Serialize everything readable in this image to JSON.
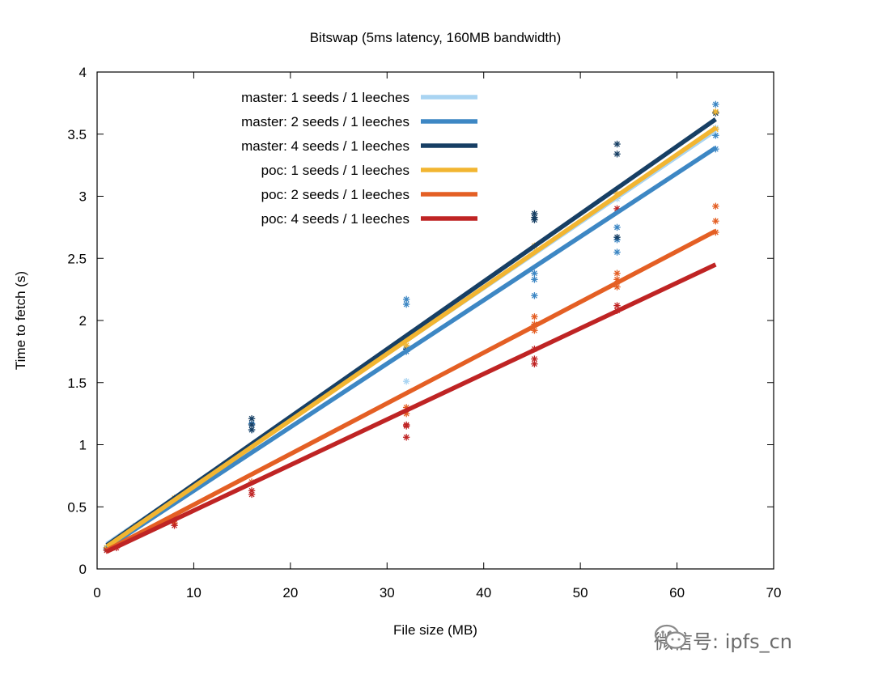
{
  "chart_data": {
    "type": "line",
    "title": "Bitswap (5ms latency, 160MB bandwidth)",
    "xlabel": "File size (MB)",
    "ylabel": "Time to fetch (s)",
    "xlim": [
      0,
      70
    ],
    "ylim": [
      0,
      4
    ],
    "xticks": [
      0,
      10,
      20,
      30,
      40,
      50,
      60,
      70
    ],
    "yticks": [
      0,
      0.5,
      1,
      1.5,
      2,
      2.5,
      3,
      3.5,
      4
    ],
    "grid": false,
    "legend_position": "top-left",
    "series": [
      {
        "name": "master: 1 seeds / 1 leeches",
        "color": "#a9d4f2",
        "line": [
          [
            1,
            0.2
          ],
          [
            64,
            3.53
          ]
        ],
        "points": [
          [
            1,
            0.17
          ],
          [
            2,
            0.22
          ],
          [
            4,
            0.35
          ],
          [
            8,
            0.56
          ],
          [
            16,
            0.97
          ],
          [
            32,
            1.78
          ],
          [
            32,
            1.51
          ],
          [
            45.25,
            2.55
          ],
          [
            53.8,
            2.98
          ],
          [
            64,
            3.49
          ],
          [
            64,
            3.55
          ]
        ]
      },
      {
        "name": "master: 2 seeds / 1 leeches",
        "color": "#3d87c4",
        "line": [
          [
            1,
            0.17
          ],
          [
            64,
            3.39
          ]
        ],
        "points": [
          [
            1,
            0.16
          ],
          [
            2,
            0.21
          ],
          [
            4,
            0.34
          ],
          [
            8,
            0.55
          ],
          [
            16,
            1.12
          ],
          [
            16,
            1.17
          ],
          [
            32,
            2.13
          ],
          [
            32,
            2.17
          ],
          [
            32,
            1.75
          ],
          [
            45.25,
            2.2
          ],
          [
            45.25,
            2.33
          ],
          [
            45.25,
            2.38
          ],
          [
            53.8,
            2.55
          ],
          [
            53.8,
            2.65
          ],
          [
            53.8,
            2.75
          ],
          [
            64,
            3.38
          ],
          [
            64,
            3.49
          ],
          [
            64,
            3.74
          ]
        ]
      },
      {
        "name": "master: 4 seeds / 1 leeches",
        "color": "#173f64",
        "line": [
          [
            1,
            0.19
          ],
          [
            64,
            3.62
          ]
        ],
        "points": [
          [
            1,
            0.17
          ],
          [
            2,
            0.22
          ],
          [
            4,
            0.35
          ],
          [
            8,
            0.55
          ],
          [
            16,
            1.16
          ],
          [
            16,
            1.21
          ],
          [
            16,
            1.12
          ],
          [
            32,
            1.77
          ],
          [
            45.25,
            2.81
          ],
          [
            45.25,
            2.86
          ],
          [
            45.25,
            2.83
          ],
          [
            53.8,
            3.34
          ],
          [
            53.8,
            3.42
          ],
          [
            53.8,
            2.67
          ],
          [
            64,
            3.67
          ]
        ]
      },
      {
        "name": "poc: 1 seeds / 1 leeches",
        "color": "#f2b531",
        "line": [
          [
            1,
            0.18
          ],
          [
            64,
            3.55
          ]
        ],
        "points": [
          [
            1,
            0.17
          ],
          [
            2,
            0.22
          ],
          [
            4,
            0.35
          ],
          [
            8,
            0.57
          ],
          [
            16,
            0.99
          ],
          [
            32,
            1.8
          ],
          [
            45.25,
            2.6
          ],
          [
            53.8,
            3.02
          ],
          [
            64,
            3.54
          ],
          [
            64,
            3.68
          ]
        ]
      },
      {
        "name": "poc: 2 seeds / 1 leeches",
        "color": "#e45f24",
        "line": [
          [
            1,
            0.15
          ],
          [
            64,
            2.72
          ]
        ],
        "points": [
          [
            1,
            0.15
          ],
          [
            2,
            0.19
          ],
          [
            4,
            0.34
          ],
          [
            8,
            0.42
          ],
          [
            8,
            0.37
          ],
          [
            16,
            0.7
          ],
          [
            32,
            1.25
          ],
          [
            32,
            1.3
          ],
          [
            45.25,
            1.92
          ],
          [
            45.25,
            1.97
          ],
          [
            45.25,
            2.03
          ],
          [
            53.8,
            2.27
          ],
          [
            53.8,
            2.33
          ],
          [
            53.8,
            2.38
          ],
          [
            64,
            2.71
          ],
          [
            64,
            2.8
          ],
          [
            64,
            2.92
          ]
        ]
      },
      {
        "name": "poc: 4 seeds / 1 leeches",
        "color": "#bf2424",
        "line": [
          [
            1,
            0.14
          ],
          [
            64,
            2.45
          ]
        ],
        "points": [
          [
            1,
            0.15
          ],
          [
            2,
            0.17
          ],
          [
            4,
            0.34
          ],
          [
            8,
            0.35
          ],
          [
            8,
            0.4
          ],
          [
            16,
            0.6
          ],
          [
            16,
            0.63
          ],
          [
            32,
            1.06
          ],
          [
            32,
            1.15
          ],
          [
            32,
            1.16
          ],
          [
            45.25,
            1.65
          ],
          [
            45.25,
            1.69
          ],
          [
            45.25,
            1.77
          ],
          [
            53.8,
            2.08
          ],
          [
            53.8,
            2.12
          ],
          [
            53.8,
            2.9
          ]
        ]
      }
    ]
  },
  "watermark": {
    "text": "微信号: ipfs_cn",
    "icon": "wechat-icon"
  }
}
